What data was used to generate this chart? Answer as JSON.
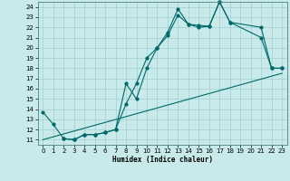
{
  "xlabel": "Humidex (Indice chaleur)",
  "background_color": "#c8eaea",
  "grid_color": "#a8d4d4",
  "line_color": "#006868",
  "xlim": [
    -0.5,
    23.5
  ],
  "ylim": [
    10.5,
    24.5
  ],
  "xticks": [
    0,
    1,
    2,
    3,
    4,
    5,
    6,
    7,
    8,
    9,
    10,
    11,
    12,
    13,
    14,
    15,
    16,
    17,
    18,
    19,
    20,
    21,
    22,
    23
  ],
  "yticks": [
    11,
    12,
    13,
    14,
    15,
    16,
    17,
    18,
    19,
    20,
    21,
    22,
    23,
    24
  ],
  "line1_x": [
    0,
    1,
    2,
    3,
    4,
    5,
    6,
    7,
    8,
    9,
    10,
    11,
    12,
    13,
    14,
    15,
    16,
    17,
    18,
    21,
    22,
    23
  ],
  "line1_y": [
    13.7,
    12.5,
    11.1,
    11.0,
    11.5,
    11.5,
    11.7,
    12.0,
    14.5,
    16.5,
    19.0,
    20.0,
    21.5,
    23.8,
    22.3,
    22.2,
    22.1,
    24.5,
    22.5,
    22.0,
    18.0,
    18.0
  ],
  "line2_x": [
    2,
    3,
    4,
    5,
    6,
    7,
    8,
    9,
    10,
    11,
    12,
    13,
    14,
    15,
    16,
    17,
    18,
    21,
    22,
    23
  ],
  "line2_y": [
    11.1,
    11.0,
    11.5,
    11.5,
    11.7,
    12.0,
    16.5,
    15.0,
    18.0,
    20.0,
    21.2,
    23.2,
    22.3,
    22.0,
    22.1,
    24.5,
    22.5,
    21.0,
    18.0,
    18.0
  ],
  "line3_x": [
    0,
    23
  ],
  "line3_y": [
    11.0,
    17.5
  ]
}
